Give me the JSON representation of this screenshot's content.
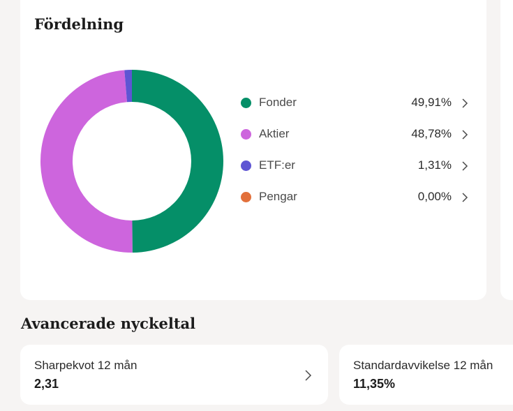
{
  "distribution": {
    "title": "Fördelning",
    "items": [
      {
        "label": "Fonder",
        "value": "49,91%",
        "share": 49.91,
        "color": "#058f68",
        "icon": "chevron-right-icon"
      },
      {
        "label": "Aktier",
        "value": "48,78%",
        "share": 48.78,
        "color": "#cd65dd",
        "icon": "chevron-right-icon"
      },
      {
        "label": "ETF:er",
        "value": "1,31%",
        "share": 1.31,
        "color": "#5e55d3",
        "icon": "chevron-right-icon"
      },
      {
        "label": "Pengar",
        "value": "0,00%",
        "share": 0.0,
        "color": "#e2703b",
        "icon": "chevron-right-icon"
      }
    ]
  },
  "advanced": {
    "title": "Avancerade nyckeltal",
    "metrics": [
      {
        "label": "Sharpekvot 12 mån",
        "value": "2,31",
        "icon": "chevron-right-icon"
      },
      {
        "label": "Standardavvikelse 12 mån",
        "value": "11,35%"
      }
    ]
  }
}
